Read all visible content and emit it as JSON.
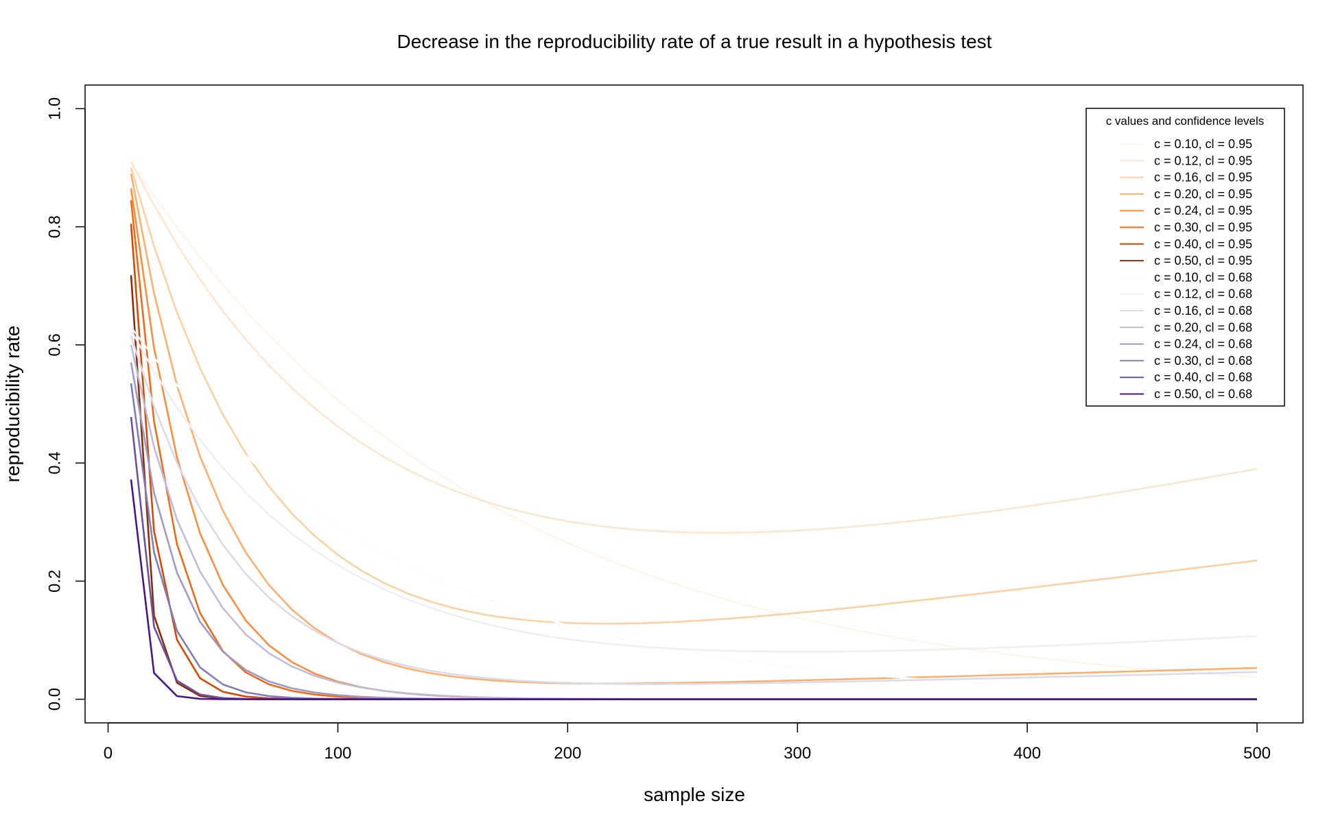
{
  "chart_data": {
    "type": "line",
    "title": "Decrease in the reproducibility rate of a true result in a hypothesis test",
    "xlabel": "sample size",
    "ylabel": "reproducibility rate",
    "xlim": [
      -10,
      520
    ],
    "ylim": [
      -0.04,
      1.04
    ],
    "xticks": [
      0,
      100,
      200,
      300,
      400,
      500
    ],
    "yticks": [
      0.0,
      0.2,
      0.4,
      0.6,
      0.8,
      1.0
    ],
    "xtick_labels": [
      "0",
      "100",
      "200",
      "300",
      "400",
      "500"
    ],
    "ytick_labels": [
      "0.0",
      "0.2",
      "0.4",
      "0.6",
      "0.8",
      "1.0"
    ],
    "grid": false,
    "legend": {
      "title": "c values and confidence levels",
      "position": "top-right"
    },
    "x": [
      10,
      20,
      30,
      40,
      50,
      60,
      70,
      80,
      90,
      100,
      110,
      120,
      130,
      140,
      150,
      160,
      170,
      180,
      190,
      200,
      210,
      220,
      230,
      240,
      250,
      260,
      270,
      280,
      290,
      300,
      310,
      320,
      330,
      340,
      350,
      360,
      370,
      380,
      390,
      400,
      410,
      420,
      430,
      440,
      450,
      460,
      470,
      480,
      490,
      500
    ],
    "series": [
      {
        "name": "c = 0.10, cl = 0.95",
        "color": "#fff5eb",
        "c": 0.1,
        "cl": 0.95,
        "start": 0.91
      },
      {
        "name": "c = 0.12, cl = 0.95",
        "color": "#fee6ce",
        "c": 0.12,
        "cl": 0.95,
        "start": 0.91,
        "end": 0.39
      },
      {
        "name": "c = 0.16, cl = 0.95",
        "color": "#fdd0a2",
        "c": 0.16,
        "cl": 0.95,
        "start": 0.9,
        "end": 0.235
      },
      {
        "name": "c = 0.20, cl = 0.95",
        "color": "#fdae6b",
        "c": 0.2,
        "cl": 0.95,
        "start": 0.89,
        "end": 0.053
      },
      {
        "name": "c = 0.24, cl = 0.95",
        "color": "#fd8d3c",
        "c": 0.24,
        "cl": 0.95,
        "start": 0.865
      },
      {
        "name": "c = 0.30, cl = 0.95",
        "color": "#f16913",
        "c": 0.3,
        "cl": 0.95,
        "start": 0.845
      },
      {
        "name": "c = 0.40, cl = 0.95",
        "color": "#d94801",
        "c": 0.4,
        "cl": 0.95,
        "start": 0.805
      },
      {
        "name": "c = 0.50, cl = 0.95",
        "color": "#8c2d04",
        "c": 0.5,
        "cl": 0.95,
        "start": 0.718
      },
      {
        "name": "c = 0.10, cl = 0.68",
        "color": "#fcfbfd",
        "c": 0.1,
        "cl": 0.68,
        "start": 0.63
      },
      {
        "name": "c = 0.12, cl = 0.68",
        "color": "#efedf5",
        "c": 0.12,
        "cl": 0.68,
        "start": 0.625,
        "end": 0.107
      },
      {
        "name": "c = 0.16, cl = 0.68",
        "color": "#dadaeb",
        "c": 0.16,
        "cl": 0.68,
        "start": 0.615,
        "end": 0.046
      },
      {
        "name": "c = 0.20, cl = 0.68",
        "color": "#bcbddc",
        "c": 0.2,
        "cl": 0.68,
        "start": 0.6
      },
      {
        "name": "c = 0.24, cl = 0.68",
        "color": "#9e9ac8",
        "c": 0.24,
        "cl": 0.68,
        "start": 0.57
      },
      {
        "name": "c = 0.30, cl = 0.68",
        "color": "#807dba",
        "c": 0.3,
        "cl": 0.68,
        "start": 0.535
      },
      {
        "name": "c = 0.40, cl = 0.68",
        "color": "#6a51a3",
        "c": 0.4,
        "cl": 0.68,
        "start": 0.478
      },
      {
        "name": "c = 0.50, cl = 0.68",
        "color": "#4a1486",
        "c": 0.5,
        "cl": 0.68,
        "start": 0.372
      }
    ]
  }
}
